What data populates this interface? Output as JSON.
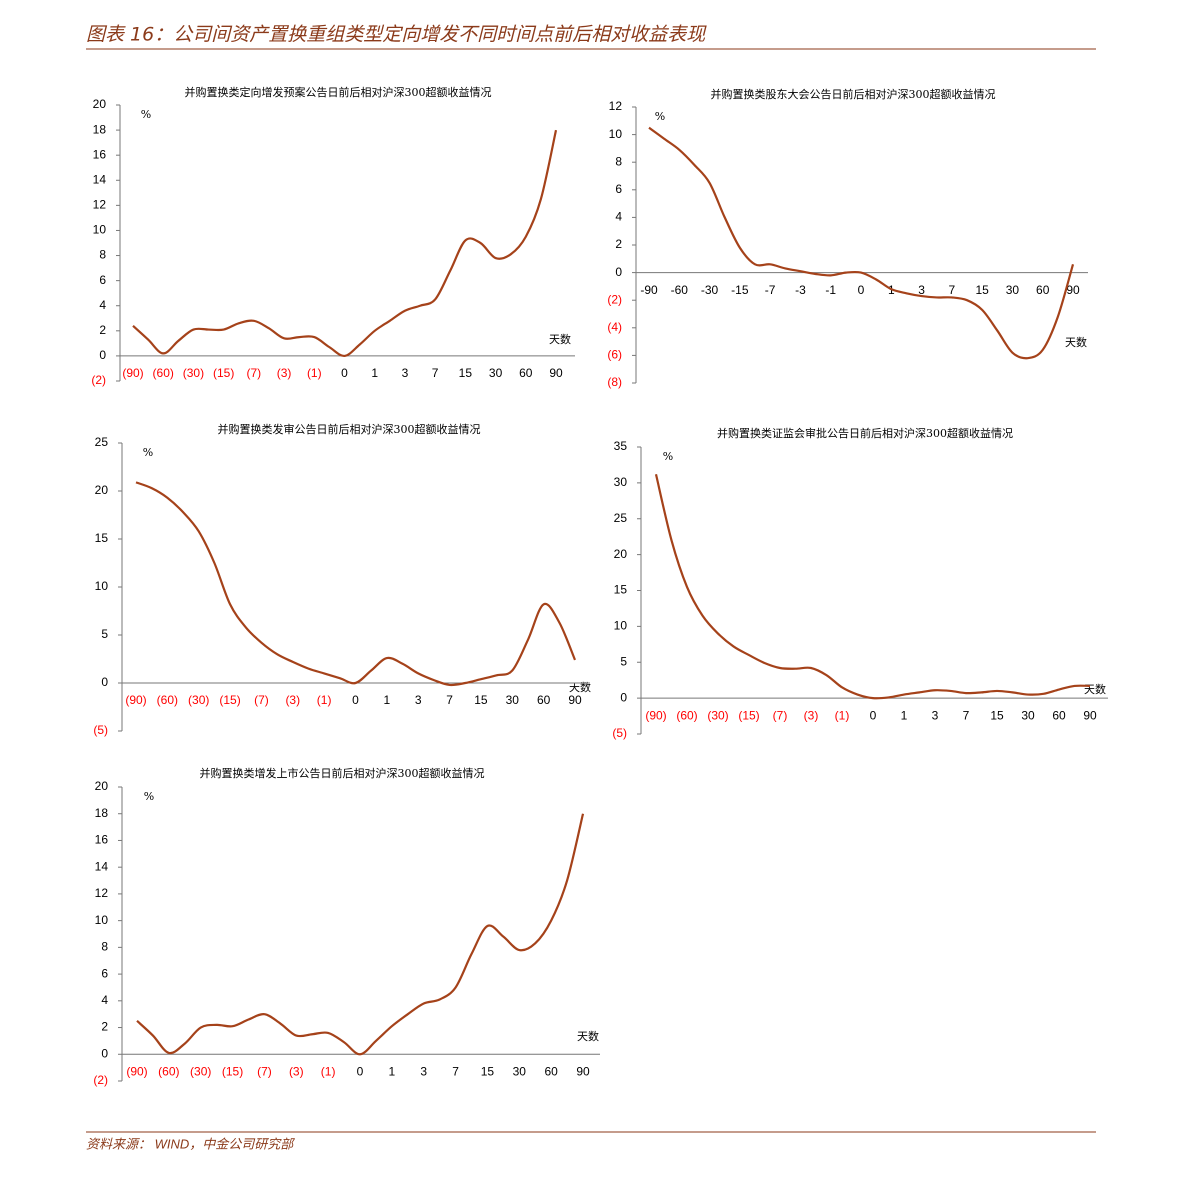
{
  "header": {
    "title": "图表 16：公司间资产置换重组类型定向增发不同时间点前后相对收益表现"
  },
  "chart_data": [
    {
      "type": "line",
      "title": "并购置换类定向增发预案公告日前后相对沪深300超额收益情况",
      "y_label": "%",
      "x_label": "天数",
      "categories": [
        "(90)",
        null,
        "(60)",
        null,
        "(30)",
        null,
        "(15)",
        null,
        "(7)",
        null,
        "(3)",
        null,
        "(1)",
        null,
        "0",
        null,
        "1",
        null,
        "3",
        null,
        "7",
        null,
        "15",
        null,
        "30",
        null,
        "60",
        null,
        "90"
      ],
      "values": [
        2.4,
        1.3,
        0.2,
        1.2,
        2.1,
        2.1,
        2.1,
        2.6,
        2.8,
        2.2,
        1.4,
        1.5,
        1.5,
        0.7,
        0,
        0.9,
        2.0,
        2.8,
        3.6,
        4.0,
        4.5,
        6.8,
        9.2,
        9.0,
        7.8,
        8.1,
        9.5,
        12.5,
        18
      ],
      "color": "#a5421a",
      "negative_color": "#ff0000",
      "ylim": [
        -2,
        20
      ],
      "yticks": [
        {
          "value": -2,
          "label": "(2)"
        },
        0,
        2,
        4,
        6,
        8,
        10,
        12,
        14,
        16,
        18,
        20
      ]
    },
    {
      "type": "line",
      "title": "并购置换类股东大会公告日前后相对沪深300超额收益情况",
      "y_label": "%",
      "x_label": "天数",
      "categories": [
        "-90",
        null,
        "-60",
        null,
        "-30",
        null,
        "-15",
        null,
        "-7",
        null,
        "-3",
        null,
        "-1",
        null,
        "0",
        null,
        "1",
        null,
        "3",
        null,
        "7",
        null,
        "15",
        null,
        "30",
        null,
        "60",
        null,
        "90"
      ],
      "values": [
        10.5,
        9.7,
        8.9,
        7.8,
        6.5,
        4.0,
        1.8,
        0.6,
        0.6,
        0.3,
        0.1,
        -0.1,
        -0.2,
        0,
        0,
        -0.5,
        -1.2,
        -1.5,
        -1.7,
        -1.8,
        -1.8,
        -2.0,
        -2.7,
        -4.2,
        -5.8,
        -6.2,
        -5.6,
        -3.2,
        0.6
      ],
      "color": "#a5421a",
      "negative_color": "#ff0000",
      "ylim": [
        -8,
        12
      ],
      "yticks": [
        {
          "value": -8,
          "label": "(8)"
        },
        {
          "value": -6,
          "label": "(6)"
        },
        {
          "value": -4,
          "label": "(4)"
        },
        {
          "value": -2,
          "label": "(2)"
        },
        0,
        2,
        4,
        6,
        8,
        10,
        12
      ]
    },
    {
      "type": "line",
      "title": "并购置换类发审公告日前后相对沪深300超额收益情况",
      "y_label": "%",
      "x_label": "天数",
      "categories": [
        "(90)",
        null,
        "(60)",
        null,
        "(30)",
        null,
        "(15)",
        null,
        "(7)",
        null,
        "(3)",
        null,
        "(1)",
        null,
        "0",
        null,
        "1",
        null,
        "3",
        null,
        "7",
        null,
        "15",
        null,
        "30",
        null,
        "60",
        null,
        "90"
      ],
      "values": [
        20.9,
        20.3,
        19.3,
        17.8,
        15.8,
        12.5,
        8.2,
        5.8,
        4.2,
        3.0,
        2.2,
        1.5,
        1.0,
        0.5,
        0,
        1.3,
        2.6,
        2.0,
        1.0,
        0.3,
        -0.2,
        0,
        0.4,
        0.8,
        1.3,
        4.5,
        8.2,
        6.3,
        2.4
      ],
      "color": "#a5421a",
      "negative_color": "#ff0000",
      "ylim": [
        -5,
        25
      ],
      "yticks": [
        {
          "value": -5,
          "label": "(5)"
        },
        0,
        5,
        10,
        15,
        20,
        25
      ]
    },
    {
      "type": "line",
      "title": "并购置换类证监会审批公告日前后相对沪深300超额收益情况",
      "y_label": "%",
      "x_label": "天数",
      "categories": [
        "(90)",
        null,
        "(60)",
        null,
        "(30)",
        null,
        "(15)",
        null,
        "(7)",
        null,
        "(3)",
        null,
        "(1)",
        null,
        "0",
        null,
        "1",
        null,
        "3",
        null,
        "7",
        null,
        "15",
        null,
        "30",
        null,
        "60",
        null,
        "90"
      ],
      "values": [
        31.2,
        22,
        15.5,
        11.5,
        9.0,
        7.2,
        6.0,
        4.9,
        4.2,
        4.1,
        4.2,
        3.2,
        1.5,
        0.5,
        0,
        0.1,
        0.5,
        0.8,
        1.1,
        1.0,
        0.7,
        0.8,
        1.0,
        0.8,
        0.5,
        0.6,
        1.2,
        1.7,
        1.7
      ],
      "color": "#a5421a",
      "negative_color": "#ff0000",
      "ylim": [
        -5,
        35
      ],
      "yticks": [
        {
          "value": -5,
          "label": "(5)"
        },
        0,
        5,
        10,
        15,
        20,
        25,
        30,
        35
      ]
    },
    {
      "type": "line",
      "title": "并购置换类增发上市公告日前后相对沪深300超额收益情况",
      "y_label": "%",
      "x_label": "天数",
      "categories": [
        "(90)",
        null,
        "(60)",
        null,
        "(30)",
        null,
        "(15)",
        null,
        "(7)",
        null,
        "(3)",
        null,
        "(1)",
        null,
        "0",
        null,
        "1",
        null,
        "3",
        null,
        "7",
        null,
        "15",
        null,
        "30",
        null,
        "60",
        null,
        "90"
      ],
      "values": [
        2.5,
        1.4,
        0.1,
        0.8,
        2.0,
        2.2,
        2.1,
        2.6,
        3.0,
        2.3,
        1.4,
        1.5,
        1.6,
        0.9,
        0,
        1.0,
        2.1,
        3.0,
        3.8,
        4.1,
        5.0,
        7.5,
        9.6,
        8.8,
        7.8,
        8.3,
        10.0,
        13.0,
        18
      ],
      "color": "#a5421a",
      "negative_color": "#ff0000",
      "ylim": [
        -2,
        20
      ],
      "yticks": [
        {
          "value": -2,
          "label": "(2)"
        },
        0,
        2,
        4,
        6,
        8,
        10,
        12,
        14,
        16,
        18,
        20
      ]
    }
  ],
  "footer": {
    "source": "资料来源： WIND，中金公司研究部"
  }
}
